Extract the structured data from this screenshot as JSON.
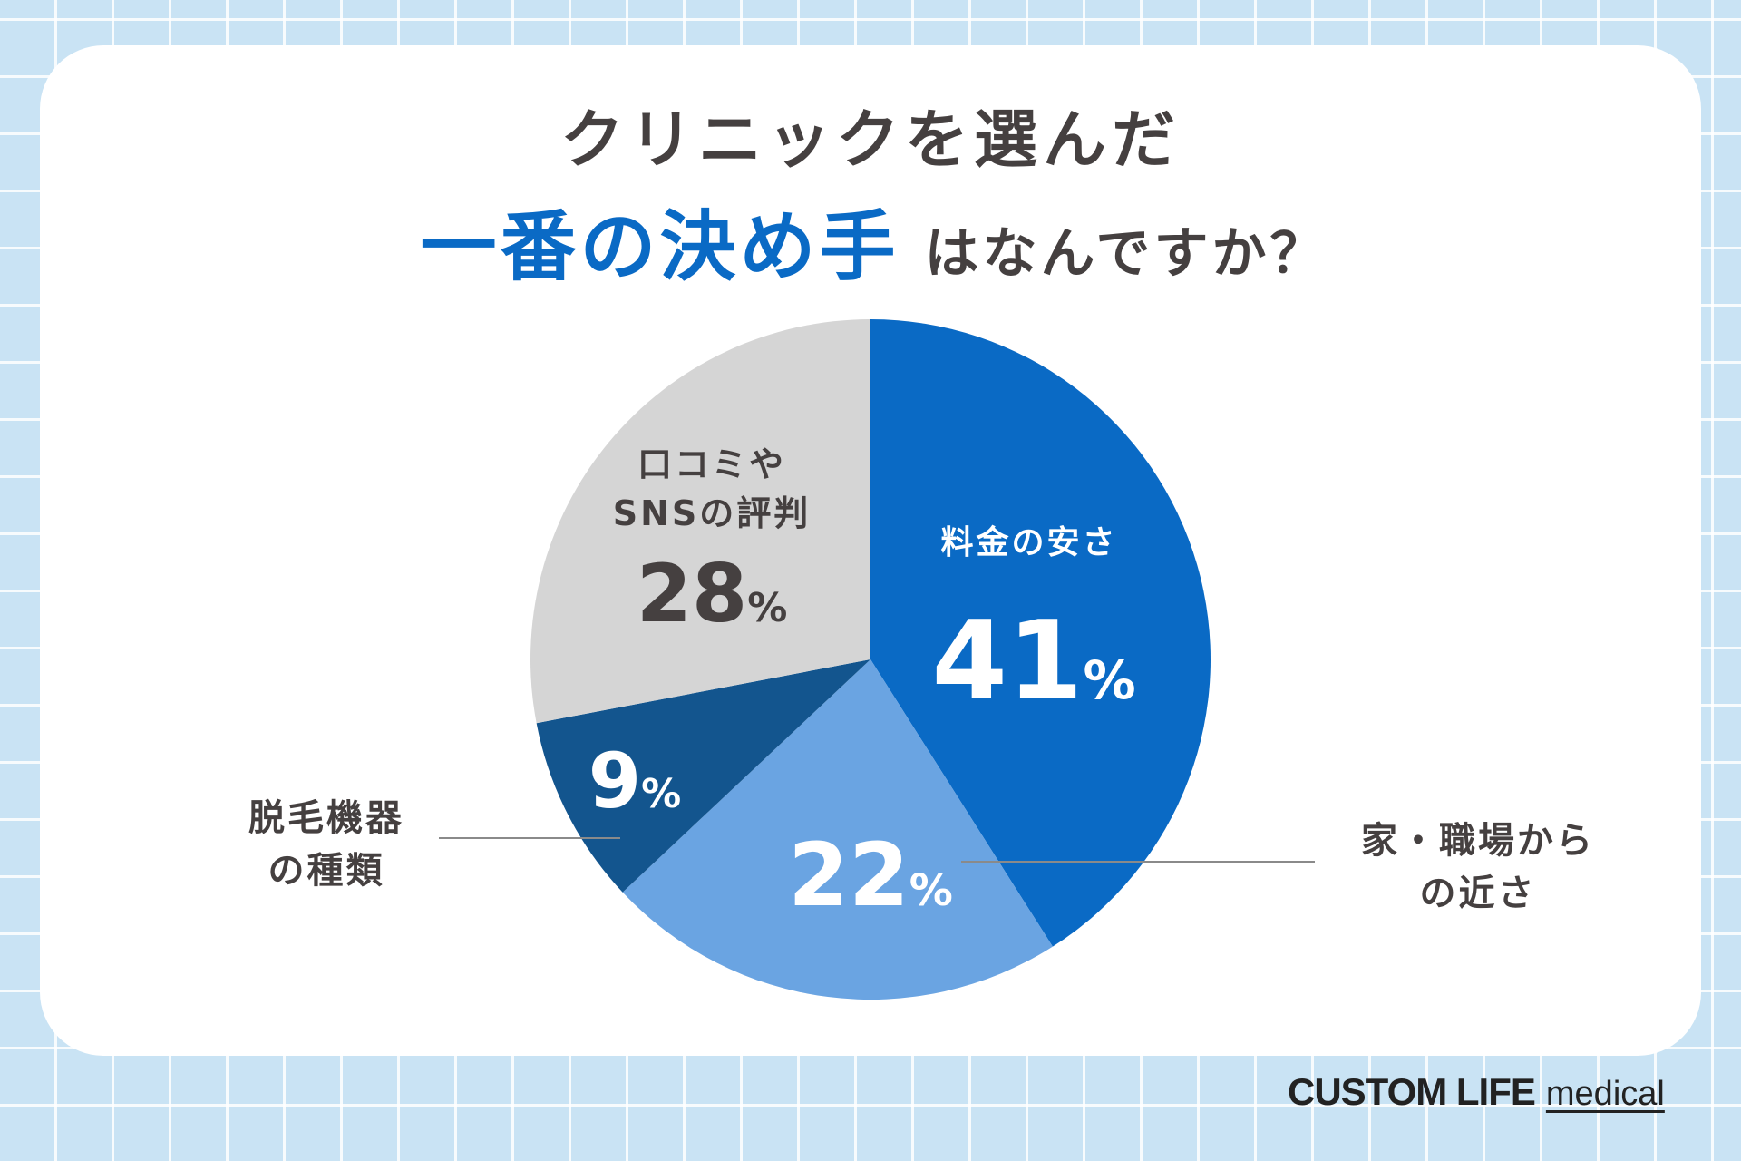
{
  "title": {
    "line1": "クリニックを選んだ",
    "highlight": "一番の決め手",
    "rest": "はなんですか？"
  },
  "chart_data": {
    "type": "pie",
    "start_angle_deg": 0,
    "direction": "clockwise",
    "slices": [
      {
        "label_lines": [
          "料金の安さ"
        ],
        "value": 41,
        "color": "#0a6ac5",
        "text_color": "#ffffff"
      },
      {
        "label_lines": [
          "家・職場から",
          "の近さ"
        ],
        "value": 22,
        "color": "#6aa4e2",
        "text_color": "#ffffff"
      },
      {
        "label_lines": [
          "脱毛機器",
          "の種類"
        ],
        "value": 9,
        "color": "#13558e",
        "text_color": "#ffffff"
      },
      {
        "label_lines": [
          "口コミや",
          "SNSの評判"
        ],
        "value": 28,
        "color": "#d5d5d5",
        "text_color": "#454040"
      }
    ],
    "unit": "%"
  },
  "brand": {
    "logo_main": "CUSTOM LIFE",
    "logo_sub": "medical"
  },
  "colors": {
    "background": "#c9e3f4",
    "accent": "#0a6ac5",
    "highlight_marker": "#fdf0c4",
    "text": "#454040"
  }
}
